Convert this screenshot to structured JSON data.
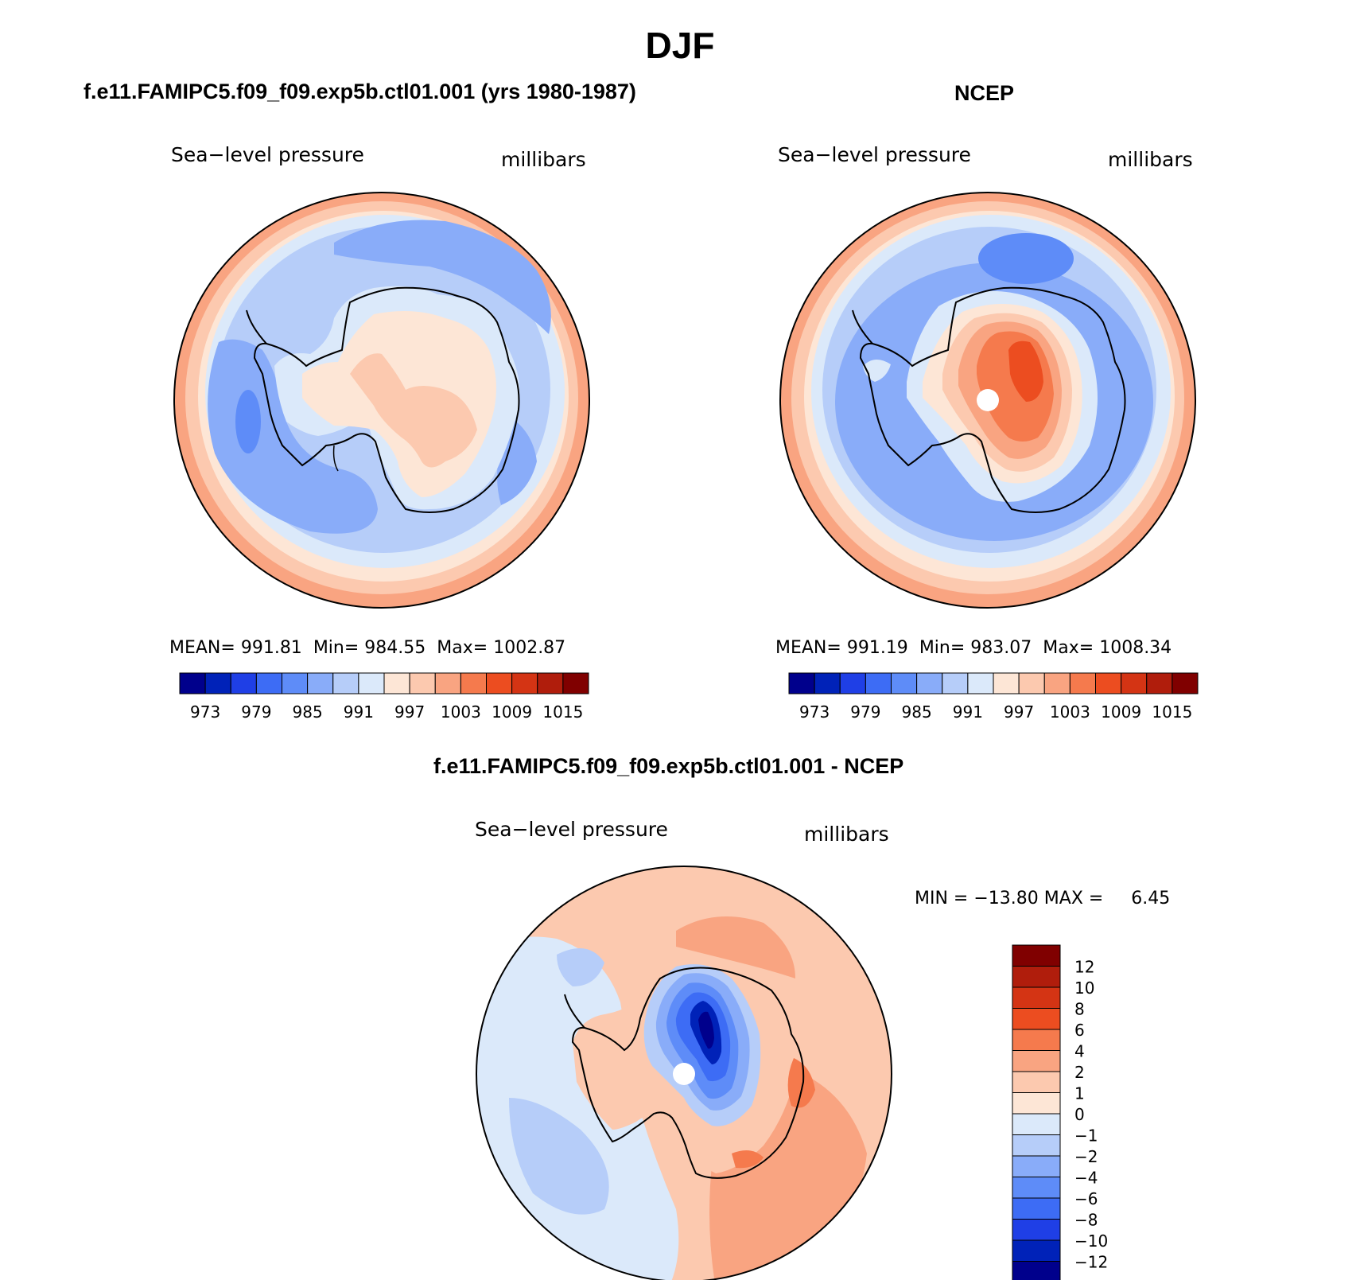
{
  "title": "DJF",
  "panels": [
    {
      "heading": "f.e11.FAMIPC5.f09_f09.exp5b.ctl01.001 (yrs 1980-1987)",
      "left_label": "Sea−level pressure",
      "right_label": "millibars",
      "stats": {
        "mean_label": "MEAN=",
        "mean": "991.81",
        "min_label": "Min=",
        "min": "984.55",
        "max_label": "Max=",
        "max": "1002.87"
      },
      "colorbar_ticks": [
        "973",
        "979",
        "985",
        "991",
        "997",
        "1003",
        "1009",
        "1015"
      ]
    },
    {
      "heading": "NCEP",
      "left_label": "Sea−level pressure",
      "right_label": "millibars",
      "stats": {
        "mean_label": "MEAN=",
        "mean": "991.19",
        "min_label": "Min=",
        "min": "983.07",
        "max_label": "Max=",
        "max": "1008.34"
      },
      "colorbar_ticks": [
        "973",
        "979",
        "985",
        "991",
        "997",
        "1003",
        "1009",
        "1015"
      ]
    },
    {
      "heading": "f.e11.FAMIPC5.f09_f09.exp5b.ctl01.001 - NCEP",
      "left_label": "Sea−level pressure",
      "right_label": "millibars",
      "minmax": {
        "min_label": "MIN =",
        "min": "−13.80",
        "max_label": "MAX =",
        "max": "6.45"
      },
      "colorbar_ticks": [
        "12",
        "10",
        "8",
        "6",
        "4",
        "2",
        "1",
        "0",
        "−1",
        "−2",
        "−4",
        "−6",
        "−8",
        "−10",
        "−12"
      ]
    }
  ],
  "colors": {
    "abs_palette": [
      "#00008c",
      "#0022b8",
      "#1f3fe6",
      "#3d6cf5",
      "#5e8cf8",
      "#89acf9",
      "#b6cdf9",
      "#dbe9fa",
      "#fde6d6",
      "#fcc9af",
      "#f9a481",
      "#f57a4d",
      "#ec4d20",
      "#d43414",
      "#b01d0c",
      "#800000"
    ],
    "diff_palette": [
      "#800000",
      "#b01d0c",
      "#d43414",
      "#ec4d20",
      "#f57a4d",
      "#f9a481",
      "#fcc9af",
      "#fde6d6",
      "#dbe9fa",
      "#b6cdf9",
      "#89acf9",
      "#5e8cf8",
      "#3d6cf5",
      "#1f3fe6",
      "#0022b8",
      "#00008c"
    ],
    "coastline": "#000000"
  }
}
